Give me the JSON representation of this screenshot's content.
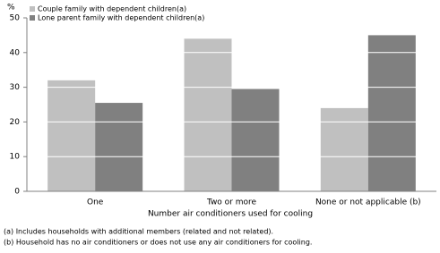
{
  "chart_data": {
    "type": "bar",
    "y_unit": "%",
    "x_label": "Number air conditioners used for cooling",
    "categories": [
      "One",
      "Two or more",
      "None or not applicable (b)"
    ],
    "series": [
      {
        "name": "Couple family with dependent children(a)",
        "color": "#c0c0c0",
        "values": [
          32,
          44,
          24
        ]
      },
      {
        "name": "Lone parent family with dependent children(a)",
        "color": "#808080",
        "values": [
          25.5,
          29.5,
          45
        ]
      }
    ],
    "ylim": [
      0,
      50
    ],
    "yticks": [
      0,
      10,
      20,
      30,
      40,
      50
    ],
    "grid": true,
    "legend": "top-left",
    "notes": [
      "(a) Includes households with additional members (related and not related).",
      "(b) Household has no air conditioners or does not use any air conditioners for cooling."
    ]
  }
}
